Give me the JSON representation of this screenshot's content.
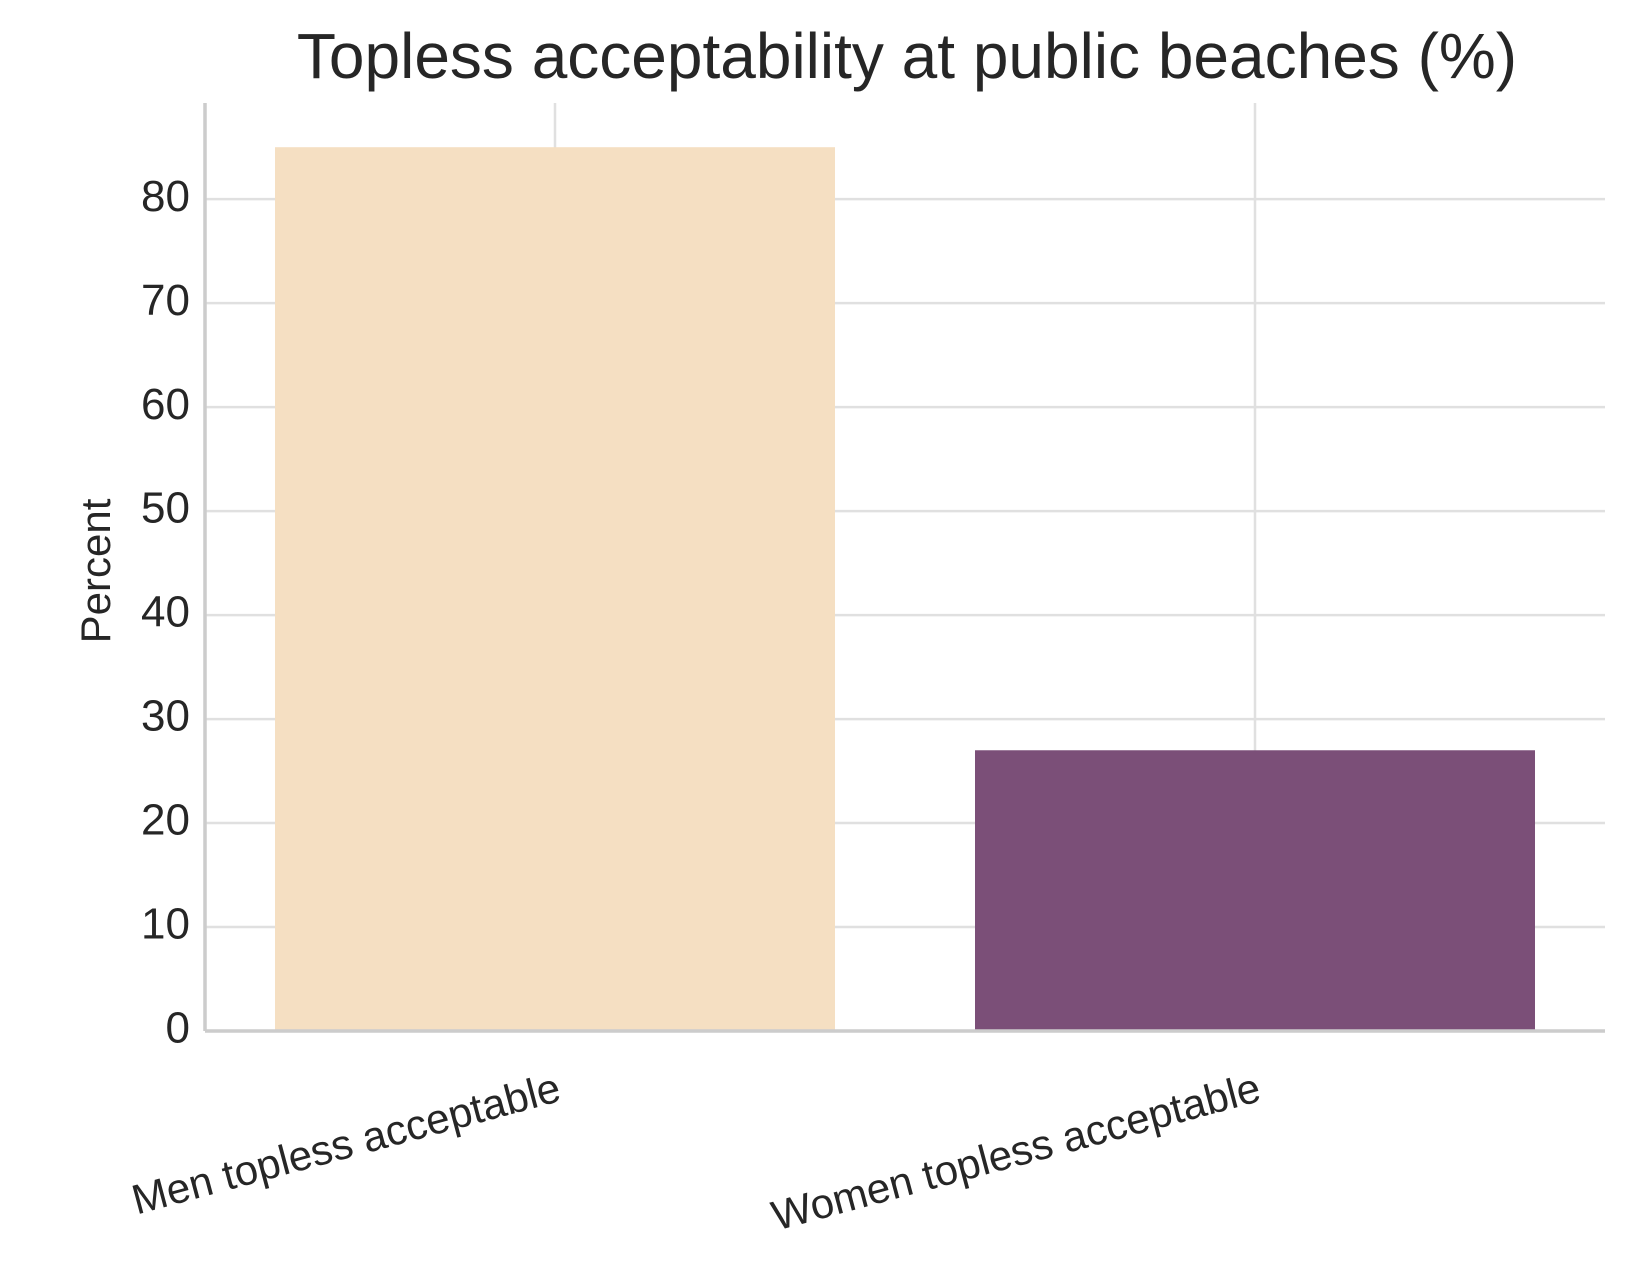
{
  "chart_data": {
    "type": "bar",
    "title": "Topless acceptability at public beaches (%)",
    "xlabel": "",
    "ylabel": "Percent",
    "categories": [
      "Men topless acceptable",
      "Women topless acceptable"
    ],
    "values": [
      85,
      27
    ],
    "colors": [
      "#f5dfc2",
      "#7b4f78"
    ],
    "ylim": [
      0,
      89.25
    ],
    "yticks": [
      0,
      10,
      20,
      30,
      40,
      50,
      60,
      70,
      80
    ],
    "grid": true,
    "legend": "none"
  }
}
